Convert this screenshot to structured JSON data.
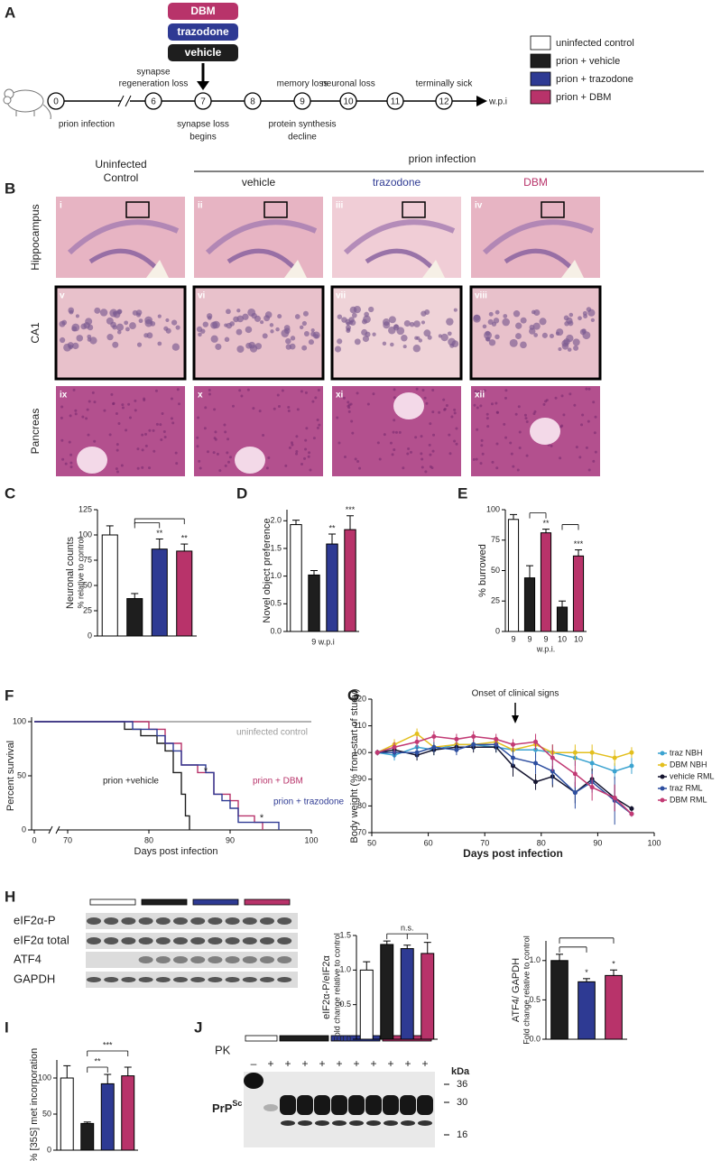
{
  "timeline": {
    "label": "A",
    "treatments": [
      "DBM",
      "trazodone",
      "vehicle"
    ],
    "treatment_colors": [
      "#b8336a",
      "#2e3a93",
      "#1e1e1e"
    ],
    "weeks": [
      "0",
      "6",
      "7",
      "8",
      "9",
      "10",
      "11",
      "12"
    ],
    "unit": "w.p.i",
    "events_above": [
      null,
      [
        "synapse",
        "regeneration loss"
      ],
      null,
      null,
      [
        "memory loss"
      ],
      [
        "neuronal loss"
      ],
      null,
      [
        "terminally sick"
      ]
    ],
    "events_below": [
      [
        "prion infection"
      ],
      null,
      [
        "synapse loss",
        "begins"
      ],
      null,
      [
        "protein synthesis",
        "decline"
      ],
      null,
      null,
      null
    ]
  },
  "legend": [
    {
      "label": "uninfected control",
      "color": "#ffffff"
    },
    {
      "label": "prion + vehicle",
      "color": "#1e1e1e"
    },
    {
      "label": "prion + trazodone",
      "color": "#2e3a93"
    },
    {
      "label": "prion + DBM",
      "color": "#b8336a"
    }
  ],
  "histology": {
    "label": "B",
    "control_header": [
      "Uninfected",
      "Control"
    ],
    "infection_header": "prion infection",
    "columns": [
      {
        "name": "vehicle",
        "color": "#1e1e1e"
      },
      {
        "name": "trazodone",
        "color": "#2e3a93"
      },
      {
        "name": "DBM",
        "color": "#b8336a"
      }
    ],
    "rows": [
      "Hippocampus",
      "CA1",
      "Pancreas"
    ],
    "numerals": [
      "i",
      "ii",
      "iii",
      "iv",
      "v",
      "vi",
      "vii",
      "viii",
      "ix",
      "x",
      "xi",
      "xii"
    ]
  },
  "blots": {
    "H": {
      "label": "H",
      "rows": [
        "eIF2α-P",
        "eIF2α total",
        "ATF4",
        "GAPDH"
      ]
    },
    "J": {
      "label": "J",
      "treatment": "PK",
      "lanes": [
        "–",
        "+",
        "+",
        "+",
        "+",
        "+",
        "+",
        "+",
        "+",
        "+",
        "+"
      ],
      "kda_unit": "kDa",
      "kda": [
        36,
        30,
        16
      ],
      "band": [
        "PrP",
        "Sc"
      ]
    }
  },
  "chart_data": [
    {
      "panel": "C",
      "type": "bar",
      "ylabel": [
        "Neuronal counts",
        "% relative to control"
      ],
      "values": [
        100,
        37,
        86,
        84
      ],
      "errors": [
        9,
        5,
        10,
        7
      ],
      "colors": [
        "#ffffff",
        "#1e1e1e",
        "#2e3a93",
        "#b8336a"
      ],
      "significance": [
        null,
        null,
        "**",
        "**"
      ],
      "brackets": [
        {
          "bars": [
            1,
            2
          ]
        },
        {
          "bars": [
            1,
            3
          ]
        }
      ],
      "ylim": [
        0,
        125
      ],
      "yticks": [
        0,
        25,
        50,
        75,
        100,
        125
      ]
    },
    {
      "panel": "D",
      "type": "bar",
      "ylabel": [
        "Novel object preference"
      ],
      "xlabel": "9 w.p.i",
      "values": [
        1.93,
        1.02,
        1.58,
        1.84
      ],
      "errors": [
        0.08,
        0.08,
        0.18,
        0.25
      ],
      "colors": [
        "#ffffff",
        "#1e1e1e",
        "#2e3a93",
        "#b8336a"
      ],
      "significance": [
        null,
        null,
        "**",
        "***"
      ],
      "ylim": [
        0,
        2.2
      ],
      "yticks": [
        {
          "value": 0,
          "label": "0.0"
        },
        0.5,
        {
          "value": 1,
          "label": "1.0"
        },
        1.5,
        {
          "value": 2,
          "label": "2.0"
        }
      ]
    },
    {
      "panel": "E",
      "type": "bar",
      "ylabel": [
        "% burrowed"
      ],
      "xlabel": "w.p.i.",
      "categories": [
        "9",
        "9",
        "9",
        "10",
        "10"
      ],
      "values": [
        92,
        44,
        81,
        20,
        62
      ],
      "errors": [
        4,
        10,
        3,
        5,
        5
      ],
      "colors": [
        "#ffffff",
        "#1e1e1e",
        "#b8336a",
        "#1e1e1e",
        "#b8336a"
      ],
      "significance": [
        null,
        null,
        "**",
        null,
        "***"
      ],
      "brackets": [
        {
          "bars": [
            1,
            2
          ]
        },
        {
          "bars": [
            3,
            4
          ]
        }
      ],
      "ylim": [
        0,
        100
      ],
      "yticks": [
        0,
        25,
        50,
        75,
        100
      ]
    },
    {
      "panel": "F",
      "type": "line",
      "step": true,
      "axis_break": true,
      "ylabel": "Percent survival",
      "xlabel": "Days post infection",
      "xlim": [
        0,
        100
      ],
      "xticks": [
        0,
        70,
        80,
        90,
        100
      ],
      "ylim": [
        0,
        100
      ],
      "yticks": [
        0,
        50,
        100
      ],
      "annotations": [
        "*",
        "*"
      ],
      "series": [
        {
          "name": "uninfected control",
          "color": "#9a9a9a",
          "x": [
            0,
            100
          ],
          "values": [
            100,
            100
          ]
        },
        {
          "name": "prion +vehicle",
          "color": "#1e1e1e",
          "x": [
            0,
            77,
            79,
            81,
            82,
            83,
            84,
            84.5,
            85
          ],
          "values": [
            100,
            93,
            87,
            80,
            73,
            53,
            33,
            13,
            0
          ]
        },
        {
          "name": "prion + DBM",
          "color": "#b8336a",
          "x": [
            0,
            80,
            82,
            84,
            86,
            88,
            90,
            91,
            93,
            94
          ],
          "values": [
            100,
            93,
            80,
            60,
            53,
            33,
            27,
            13,
            7,
            0
          ]
        },
        {
          "name": "prion + trazodone",
          "color": "#2e3a93",
          "x": [
            0,
            78,
            81,
            82,
            83,
            84,
            87,
            88,
            89,
            90,
            91,
            96
          ],
          "values": [
            100,
            93,
            87,
            80,
            73,
            60,
            53,
            33,
            27,
            20,
            7,
            0
          ]
        }
      ]
    },
    {
      "panel": "G",
      "type": "line",
      "xlabel": "Days post infection",
      "ylabel": "Body weight (% from start of study)",
      "annotation": "Onset of clinical signs",
      "legend": "right",
      "x": [
        51,
        54,
        58,
        61,
        65,
        68,
        72,
        75,
        79,
        82,
        86,
        89,
        93,
        96
      ],
      "xlim": [
        50,
        100
      ],
      "xticks": [
        50,
        60,
        70,
        80,
        90,
        100
      ],
      "ylim": [
        70,
        120
      ],
      "yticks": [
        70,
        80,
        90,
        100,
        110,
        120
      ],
      "series": [
        {
          "name": "traz NBH",
          "color": "#3ba3d0",
          "values": [
            100,
            99,
            102,
            101,
            103,
            103,
            102,
            101,
            101,
            100,
            98,
            96,
            93,
            95
          ],
          "errors": [
            1,
            2,
            2,
            2,
            2,
            2,
            2,
            2,
            3,
            3,
            3,
            3,
            3,
            3
          ]
        },
        {
          "name": "DBM NBH",
          "color": "#e3bf1e",
          "values": [
            100,
            103,
            107,
            102,
            103,
            103,
            104,
            101,
            103,
            100,
            100,
            100,
            98,
            100
          ],
          "errors": [
            1,
            2,
            2,
            2,
            2,
            2,
            2,
            2,
            2,
            3,
            3,
            3,
            3,
            2
          ]
        },
        {
          "name": "vehicle RML",
          "color": "#151530",
          "values": [
            100,
            101,
            99,
            101,
            102,
            102,
            102,
            95,
            89,
            91,
            85,
            90,
            83,
            79
          ],
          "errors": [
            1,
            2,
            2,
            2,
            2,
            2,
            2,
            4,
            3,
            4,
            4,
            4,
            5,
            1
          ]
        },
        {
          "name": "traz RML",
          "color": "#2e4fa0",
          "values": [
            100,
            100,
            100,
            102,
            101,
            103,
            103,
            98,
            96,
            93,
            85,
            89,
            82,
            77
          ],
          "errors": [
            1,
            2,
            2,
            2,
            2,
            2,
            2,
            3,
            4,
            5,
            6,
            4,
            9,
            1
          ]
        },
        {
          "name": "DBM RML",
          "color": "#c23a74",
          "values": [
            100,
            102,
            104,
            106,
            105,
            106,
            105,
            103,
            104,
            98,
            92,
            87,
            83,
            77
          ],
          "errors": [
            1,
            2,
            2,
            2,
            2,
            2,
            2,
            2,
            3,
            5,
            5,
            5,
            5,
            1
          ]
        }
      ]
    },
    {
      "type": "bar",
      "ylabel": [
        "eIF2α-P/eIF2α",
        "Fold change relative to control"
      ],
      "values": [
        1.0,
        1.37,
        1.31,
        1.24
      ],
      "errors": [
        0.12,
        0.05,
        0.05,
        0.16
      ],
      "colors": [
        "#ffffff",
        "#1e1e1e",
        "#2e3a93",
        "#b8336a"
      ],
      "brackets": [
        {
          "bars": [
            1,
            2,
            3
          ],
          "label": "n.s."
        }
      ],
      "ylim": [
        0,
        1.5
      ],
      "yticks": [
        {
          "value": 0,
          "label": "0.0"
        },
        0.5,
        {
          "value": 1,
          "label": "1.0"
        },
        1.5
      ]
    },
    {
      "type": "bar",
      "ylabel": [
        "ATF4/ GAPDH",
        "Fold change relative to control"
      ],
      "values": [
        1.0,
        0.73,
        0.81
      ],
      "errors": [
        0.08,
        0.04,
        0.07
      ],
      "colors": [
        "#1e1e1e",
        "#2e3a93",
        "#b8336a"
      ],
      "significance": [
        null,
        "*",
        "*"
      ],
      "brackets": [
        {
          "bars": [
            0,
            1
          ]
        },
        {
          "bars": [
            0,
            2
          ]
        }
      ],
      "ylim": [
        0,
        1.25
      ],
      "yticks": [
        {
          "value": 0,
          "label": "0.0"
        },
        0.5,
        {
          "value": 1,
          "label": "1.0"
        }
      ]
    },
    {
      "panel": "I",
      "type": "bar",
      "ylabel": [
        "% [35S] met incorporation"
      ],
      "values": [
        100,
        37,
        92,
        103
      ],
      "errors": [
        17,
        2,
        13,
        12
      ],
      "colors": [
        "#ffffff",
        "#1e1e1e",
        "#2e3a93",
        "#b8336a"
      ],
      "brackets": [
        {
          "bars": [
            1,
            2
          ],
          "label": "**"
        },
        {
          "bars": [
            1,
            3
          ],
          "label": "***"
        }
      ],
      "ylim": [
        0,
        125
      ],
      "yticks": [
        0,
        50,
        100
      ]
    }
  ]
}
